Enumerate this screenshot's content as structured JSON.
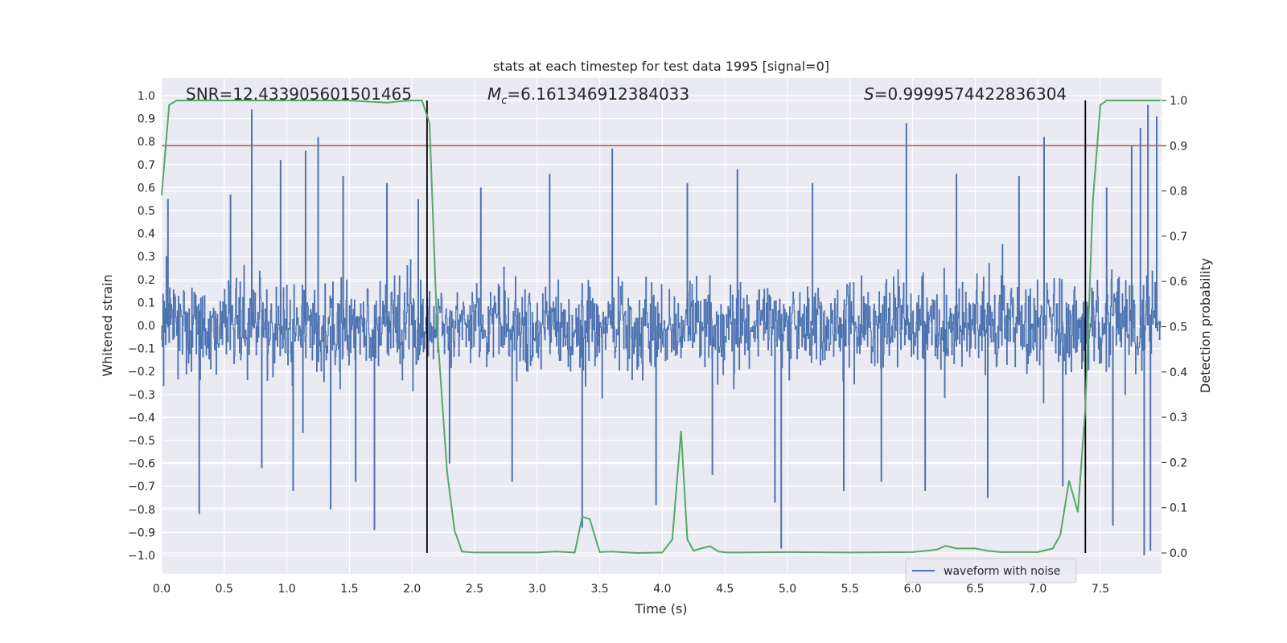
{
  "chart_data": {
    "type": "line",
    "title": "stats at each timestep for test data 1995 [signal=0]",
    "xlabel": "Time (s)",
    "ylabel": "Whitened strain",
    "y2label": "Detection probability",
    "xlim": [
      0.0,
      8.0
    ],
    "ylim": [
      -1.1,
      1.1
    ],
    "y2lim": [
      -0.047,
      1.037
    ],
    "x_ticks": [
      "0.0",
      "0.5",
      "1.0",
      "1.5",
      "2.0",
      "2.5",
      "3.0",
      "3.5",
      "4.0",
      "4.5",
      "5.0",
      "5.5",
      "6.0",
      "6.5",
      "7.0",
      "7.5"
    ],
    "y_ticks": [
      "1.0",
      "0.9",
      "0.8",
      "0.7",
      "0.6",
      "0.5",
      "0.4",
      "0.3",
      "0.2",
      "0.1",
      "0.0",
      "−0.1",
      "−0.2",
      "−0.3",
      "−0.4",
      "−0.5",
      "−0.6",
      "−0.7",
      "−0.8",
      "−0.9",
      "−1.0"
    ],
    "y2_ticks": [
      "1.0",
      "0.9",
      "0.8",
      "0.7",
      "0.6",
      "0.5",
      "0.4",
      "0.3",
      "0.2",
      "0.1",
      "0.0"
    ],
    "annotations": {
      "snr": "SNR=12.433905601501465",
      "mc_symbol": "M",
      "mc_sub": "c",
      "mc_value": "=6.161346912384033",
      "s_symbol": "S",
      "s_value": "=0.9999574422836304"
    },
    "threshold": 0.9,
    "event_lines_x": [
      2.12,
      7.38
    ],
    "legend": {
      "label": "waveform with noise",
      "placement": "lower-right"
    },
    "series": [
      {
        "name": "waveform with noise",
        "axis": "left",
        "color": "#4c72b0",
        "seed": 1995,
        "spikes": [
          {
            "x": 0.05,
            "y": 0.55
          },
          {
            "x": 0.3,
            "y": -0.82
          },
          {
            "x": 0.55,
            "y": 0.57
          },
          {
            "x": 0.72,
            "y": 0.94
          },
          {
            "x": 0.8,
            "y": -0.62
          },
          {
            "x": 0.95,
            "y": 0.72
          },
          {
            "x": 1.05,
            "y": -0.72
          },
          {
            "x": 1.15,
            "y": 0.76
          },
          {
            "x": 1.25,
            "y": 0.82
          },
          {
            "x": 1.35,
            "y": -0.8
          },
          {
            "x": 1.45,
            "y": 0.65
          },
          {
            "x": 1.55,
            "y": -0.68
          },
          {
            "x": 1.7,
            "y": -0.89
          },
          {
            "x": 1.8,
            "y": 0.62
          },
          {
            "x": 2.05,
            "y": 0.55
          },
          {
            "x": 2.3,
            "y": -0.6
          },
          {
            "x": 2.55,
            "y": 0.6
          },
          {
            "x": 2.8,
            "y": -0.68
          },
          {
            "x": 3.1,
            "y": 0.66
          },
          {
            "x": 3.36,
            "y": -0.88
          },
          {
            "x": 3.6,
            "y": 0.77
          },
          {
            "x": 3.95,
            "y": -0.78
          },
          {
            "x": 4.2,
            "y": 0.62
          },
          {
            "x": 4.4,
            "y": -0.65
          },
          {
            "x": 4.6,
            "y": 0.68
          },
          {
            "x": 4.9,
            "y": -0.77
          },
          {
            "x": 4.95,
            "y": -0.97
          },
          {
            "x": 5.2,
            "y": 0.62
          },
          {
            "x": 5.45,
            "y": -0.72
          },
          {
            "x": 5.75,
            "y": -0.68
          },
          {
            "x": 5.95,
            "y": 0.88
          },
          {
            "x": 6.1,
            "y": -0.72
          },
          {
            "x": 6.35,
            "y": 0.66
          },
          {
            "x": 6.6,
            "y": -0.75
          },
          {
            "x": 6.85,
            "y": 0.65
          },
          {
            "x": 7.05,
            "y": 0.82
          },
          {
            "x": 7.2,
            "y": -0.7
          },
          {
            "x": 7.55,
            "y": 0.6
          },
          {
            "x": 7.6,
            "y": -0.87
          },
          {
            "x": 7.75,
            "y": 0.78
          },
          {
            "x": 7.82,
            "y": 0.86
          },
          {
            "x": 7.85,
            "y": -1.0
          },
          {
            "x": 7.88,
            "y": 0.96
          },
          {
            "x": 7.9,
            "y": -0.98
          },
          {
            "x": 7.95,
            "y": 0.91
          }
        ]
      },
      {
        "name": "detection probability",
        "axis": "right",
        "color": "#55a868",
        "x": [
          0.0,
          0.06,
          0.12,
          0.5,
          1.0,
          1.5,
          1.8,
          1.9,
          2.0,
          2.08,
          2.14,
          2.2,
          2.28,
          2.34,
          2.4,
          2.5,
          2.7,
          3.0,
          3.15,
          3.3,
          3.36,
          3.42,
          3.5,
          3.6,
          3.8,
          4.0,
          4.08,
          4.15,
          4.2,
          4.25,
          4.31,
          4.38,
          4.45,
          4.52,
          4.6,
          5.0,
          5.5,
          6.0,
          6.15,
          6.2,
          6.26,
          6.35,
          6.5,
          6.6,
          6.7,
          7.0,
          7.12,
          7.18,
          7.25,
          7.32,
          7.38,
          7.44,
          7.5,
          7.55,
          7.6,
          7.98
        ],
        "y": [
          0.79,
          0.99,
          1.0,
          1.0,
          1.0,
          1.0,
          0.995,
          0.998,
          1.0,
          1.0,
          0.95,
          0.5,
          0.18,
          0.05,
          0.003,
          0.001,
          0.001,
          0.001,
          0.003,
          0.001,
          0.08,
          0.075,
          0.002,
          0.003,
          0.0,
          0.001,
          0.03,
          0.27,
          0.03,
          0.005,
          0.01,
          0.015,
          0.003,
          0.001,
          0.001,
          0.002,
          0.001,
          0.002,
          0.006,
          0.008,
          0.016,
          0.01,
          0.01,
          0.005,
          0.002,
          0.002,
          0.01,
          0.04,
          0.16,
          0.09,
          0.32,
          0.78,
          0.99,
          1.0,
          1.0,
          1.0
        ]
      }
    ]
  }
}
